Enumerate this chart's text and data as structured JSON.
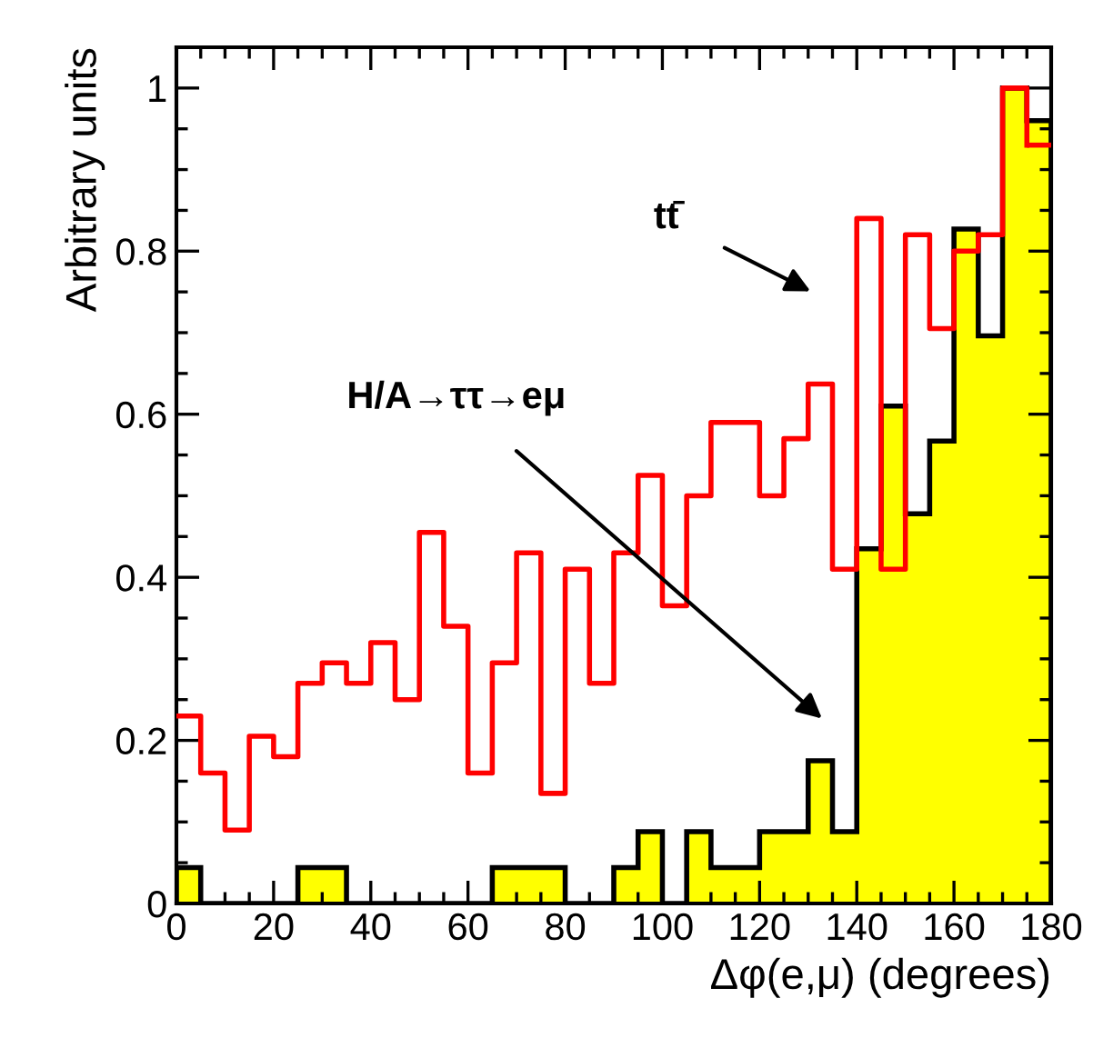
{
  "chart_data": {
    "type": "histogram",
    "xlabel": "Δφ(e,μ) (degrees)",
    "ylabel": "Arbitrary units",
    "bins": [
      0,
      5,
      10,
      15,
      20,
      25,
      30,
      35,
      40,
      45,
      50,
      55,
      60,
      65,
      70,
      75,
      80,
      85,
      90,
      95,
      100,
      105,
      110,
      115,
      120,
      125,
      130,
      135,
      140,
      145,
      150,
      155,
      160,
      165,
      170,
      175,
      180
    ],
    "series": [
      {
        "color": "#ffff00",
        "values": [
          0.044,
          0,
          0,
          0,
          0,
          0.044,
          0.044,
          0,
          0,
          0,
          0,
          0,
          0,
          0.044,
          0.044,
          0.044,
          0,
          0,
          0.044,
          0.088,
          0,
          0.088,
          0.044,
          0.044,
          0.088,
          0.088,
          0.175,
          0.088,
          0.435,
          0.61,
          0.478,
          0.567,
          0.827,
          0.696,
          1.0,
          0.96
        ]
      },
      {
        "type": "step",
        "color": "#ff0000",
        "x": [
          0,
          5,
          10,
          15,
          20,
          25,
          30,
          35,
          40,
          45,
          50,
          55,
          60,
          65,
          70,
          75,
          80,
          85,
          90,
          95,
          100,
          105,
          110,
          115,
          120,
          125,
          130,
          135,
          140,
          145,
          150,
          155,
          160,
          165,
          170,
          175
        ],
        "values": [
          0.23,
          0.16,
          0.09,
          0.205,
          0.18,
          0.27,
          0.295,
          0.27,
          0.32,
          0.25,
          0.455,
          0.34,
          0.16,
          0.295,
          0.43,
          0.135,
          0.41,
          0.27,
          0.43,
          0.525,
          0.365,
          0.5,
          0.59,
          0.59,
          0.5,
          0.57,
          0.637,
          0.41,
          0.84,
          0.41,
          0.82,
          0.705,
          0.8,
          0.82,
          1.0,
          0.93
        ]
      }
    ],
    "annotations": [
      "tt̄",
      "H/A→ττ→eμ"
    ],
    "xlim": [
      0,
      180
    ],
    "ylim": [
      0,
      1.05
    ],
    "xticks": [
      0,
      20,
      40,
      60,
      80,
      100,
      120,
      140,
      160,
      180
    ],
    "yticks": [
      0,
      0.2,
      0.4,
      0.6,
      0.8,
      {
        "value": 1,
        "label": "1"
      }
    ],
    "grid": false,
    "legend": false
  }
}
